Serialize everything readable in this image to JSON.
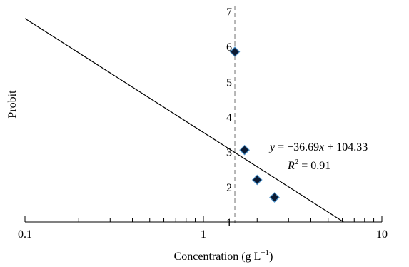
{
  "chart_data": {
    "type": "scatter",
    "xscale": "log",
    "xlim": [
      0.1,
      10
    ],
    "ylim": [
      1,
      7
    ],
    "xlabel": "Concentration (g L⁻¹)",
    "ylabel": "Probit",
    "xticks": [
      {
        "value": 0.1,
        "label": "0.1"
      },
      {
        "value": 1,
        "label": "1"
      },
      {
        "value": 10,
        "label": "10"
      }
    ],
    "yticks": [
      {
        "value": 1,
        "label": "1"
      },
      {
        "value": 2,
        "label": "2"
      },
      {
        "value": 3,
        "label": "3"
      },
      {
        "value": 4,
        "label": "4"
      },
      {
        "value": 5,
        "label": "5"
      },
      {
        "value": 6,
        "label": "6"
      },
      {
        "value": 7,
        "label": "7"
      }
    ],
    "y_axis_position_x": 1.5,
    "reference_line_x": 1.5,
    "points": [
      {
        "x": 1.5,
        "y": 5.85
      },
      {
        "x": 1.7,
        "y": 3.05
      },
      {
        "x": 2.0,
        "y": 2.2
      },
      {
        "x": 2.5,
        "y": 1.7
      }
    ],
    "trendline": {
      "points": [
        {
          "x": 0.1,
          "y": 6.8
        },
        {
          "x": 6.1,
          "y": 1.0
        }
      ]
    },
    "equation": "y = −36.69x + 104.33",
    "r_squared": "R² = 0.91",
    "marker_fill": "#0b1a33",
    "marker_stroke": "#4a90c8",
    "grid": false,
    "legend": "none"
  }
}
